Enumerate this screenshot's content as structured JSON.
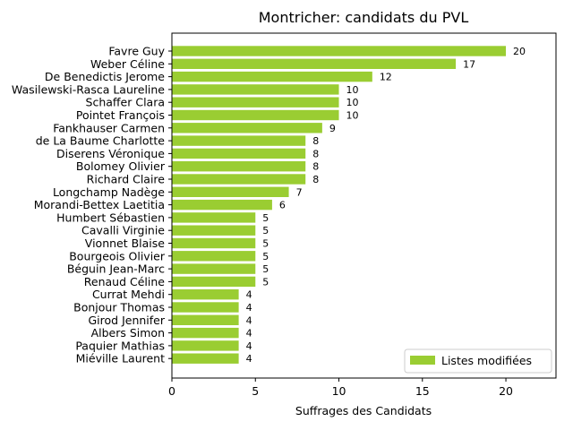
{
  "chart_data": {
    "type": "bar",
    "orientation": "horizontal",
    "title": "Montricher: candidats du PVL",
    "xlabel": "Suffrages des Candidats",
    "ylabel": "",
    "xlim": [
      0,
      23
    ],
    "xticks": [
      0,
      5,
      10,
      15,
      20
    ],
    "grid": false,
    "legend_placement": "lower-right",
    "bar_color": "#9ACD32",
    "categories": [
      "Favre Guy",
      "Weber Céline",
      "De Benedictis Jerome",
      "Wasilewski-Rasca Laureline",
      "Schaffer Clara",
      "Pointet François",
      "Fankhauser Carmen",
      "de La Baume Charlotte",
      "Diserens Véronique",
      "Bolomey Olivier",
      "Richard Claire",
      "Longchamp Nadège",
      "Morandi-Bettex Laetitia",
      "Humbert Sébastien",
      "Cavalli Virginie",
      "Vionnet Blaise",
      "Bourgeois Olivier",
      "Béguin Jean-Marc",
      "Renaud Céline",
      "Currat Mehdi",
      "Bonjour Thomas",
      "Girod Jennifer",
      "Albers Simon",
      "Paquier Mathias",
      "Miéville Laurent"
    ],
    "series": [
      {
        "name": "Listes modifiées",
        "values": [
          20,
          17,
          12,
          10,
          10,
          10,
          9,
          8,
          8,
          8,
          8,
          7,
          6,
          5,
          5,
          5,
          5,
          5,
          5,
          4,
          4,
          4,
          4,
          4,
          4
        ]
      }
    ]
  }
}
